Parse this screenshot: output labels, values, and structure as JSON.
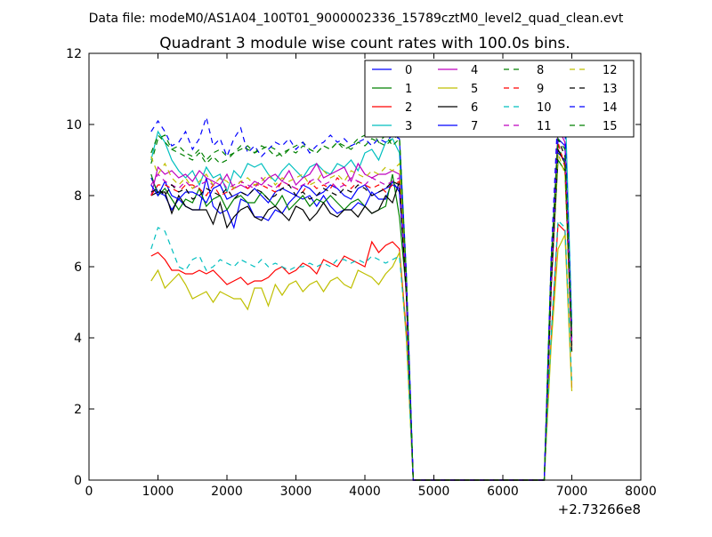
{
  "page": {
    "suptitle": "Data file: modeM0/AS1A04_100T01_9000002336_15789cztM0_level2_quad_clean.evt"
  },
  "chart_data": {
    "type": "line",
    "title": "Quadrant 3 module wise count rates with 100.0s bins.",
    "xlabel": "",
    "ylabel": "",
    "x_offset_label": "+2.73266e8",
    "xlim": [
      0,
      8000
    ],
    "ylim": [
      0,
      12
    ],
    "xticks": [
      0,
      1000,
      2000,
      3000,
      4000,
      5000,
      6000,
      7000,
      8000
    ],
    "yticks": [
      0,
      2,
      4,
      6,
      8,
      10,
      12
    ],
    "legend_position": "top-right",
    "x": [
      900,
      1000,
      1100,
      1200,
      1300,
      1400,
      1500,
      1600,
      1700,
      1800,
      1900,
      2000,
      2100,
      2200,
      2300,
      2400,
      2500,
      2600,
      2700,
      2800,
      2900,
      3000,
      3100,
      3200,
      3300,
      3400,
      3500,
      3600,
      3700,
      3800,
      3900,
      4000,
      4100,
      4200,
      4300,
      4400,
      4500,
      4600,
      4700,
      4800,
      4900,
      5000,
      5100,
      5200,
      5300,
      5400,
      5500,
      5600,
      5700,
      5800,
      5900,
      6000,
      6100,
      6200,
      6300,
      6400,
      6500,
      6600,
      6700,
      6800,
      6900,
      7000
    ],
    "series": [
      {
        "name": "0",
        "color": "#0000ff",
        "dash": "solid",
        "values": [
          8.5,
          8.1,
          8.0,
          7.6,
          7.9,
          7.7,
          7.6,
          7.6,
          8.5,
          7.7,
          7.5,
          7.6,
          7.1,
          7.9,
          7.8,
          7.4,
          7.4,
          7.3,
          7.6,
          7.5,
          7.8,
          8.0,
          7.9,
          8.0,
          7.7,
          8.0,
          7.7,
          7.5,
          7.6,
          7.6,
          7.8,
          7.7,
          8.1,
          7.9,
          7.9,
          8.4,
          8.1,
          5.5,
          0,
          0,
          0,
          0,
          0,
          0,
          0,
          0,
          0,
          0,
          0,
          0,
          0,
          0,
          0,
          0,
          0,
          0,
          0,
          0,
          5.8,
          9.2,
          9.0,
          4.0
        ]
      },
      {
        "name": "1",
        "color": "#008000",
        "dash": "solid",
        "values": [
          8.6,
          8.0,
          8.2,
          7.9,
          7.6,
          7.9,
          7.8,
          8.2,
          7.7,
          7.9,
          8.0,
          7.6,
          7.9,
          8.0,
          7.8,
          7.8,
          8.1,
          7.9,
          7.7,
          8.0,
          7.6,
          7.8,
          8.0,
          7.7,
          7.9,
          7.8,
          8.0,
          7.8,
          7.6,
          7.8,
          7.9,
          7.7,
          7.5,
          7.6,
          7.7,
          8.6,
          7.4,
          5.3,
          0,
          0,
          0,
          0,
          0,
          0,
          0,
          0,
          0,
          0,
          0,
          0,
          0,
          0,
          0,
          0,
          0,
          0,
          0,
          0,
          5.5,
          9.0,
          8.7,
          3.8
        ]
      },
      {
        "name": "2",
        "color": "#ff0000",
        "dash": "solid",
        "values": [
          6.3,
          6.4,
          6.2,
          5.9,
          5.9,
          5.8,
          5.8,
          5.9,
          5.8,
          5.9,
          5.7,
          5.5,
          5.6,
          5.7,
          5.5,
          5.6,
          5.6,
          5.7,
          5.9,
          6.0,
          5.8,
          5.9,
          6.1,
          6.0,
          5.8,
          6.2,
          6.1,
          6.0,
          6.3,
          6.2,
          6.1,
          6.0,
          6.7,
          6.4,
          6.6,
          6.7,
          6.5,
          4.2,
          0,
          0,
          0,
          0,
          0,
          0,
          0,
          0,
          0,
          0,
          0,
          0,
          0,
          0,
          0,
          0,
          0,
          0,
          0,
          0,
          4.0,
          7.2,
          7.0,
          2.6
        ]
      },
      {
        "name": "3",
        "color": "#00bfbf",
        "dash": "solid",
        "values": [
          9.0,
          9.8,
          9.5,
          9.0,
          8.7,
          8.5,
          8.7,
          8.3,
          8.8,
          8.5,
          8.6,
          8.1,
          8.7,
          8.5,
          8.9,
          8.8,
          8.9,
          8.6,
          8.4,
          8.7,
          8.9,
          8.7,
          8.5,
          8.8,
          8.9,
          8.7,
          8.6,
          8.9,
          8.8,
          9.0,
          8.7,
          9.2,
          9.3,
          9.0,
          9.5,
          9.6,
          9.2,
          5.6,
          0,
          0,
          0,
          0,
          0,
          0,
          0,
          0,
          0,
          0,
          0,
          0,
          0,
          0,
          0,
          0,
          0,
          0,
          0,
          0,
          6.0,
          9.8,
          10.7,
          4.4
        ]
      },
      {
        "name": "4",
        "color": "#bf00bf",
        "dash": "solid",
        "values": [
          8.0,
          8.8,
          8.6,
          8.7,
          8.5,
          8.6,
          8.4,
          8.7,
          8.5,
          8.4,
          8.3,
          8.6,
          8.2,
          8.3,
          8.2,
          8.4,
          8.3,
          8.5,
          8.6,
          8.4,
          8.7,
          8.3,
          8.5,
          8.6,
          8.9,
          8.5,
          8.6,
          8.7,
          8.8,
          8.4,
          8.9,
          8.6,
          8.5,
          8.6,
          8.6,
          8.7,
          8.6,
          5.3,
          0,
          0,
          0,
          0,
          0,
          0,
          0,
          0,
          0,
          0,
          0,
          0,
          0,
          0,
          0,
          0,
          0,
          0,
          0,
          0,
          5.8,
          9.9,
          9.5,
          4.0
        ]
      },
      {
        "name": "5",
        "color": "#bfbf00",
        "dash": "solid",
        "values": [
          5.6,
          5.9,
          5.4,
          5.6,
          5.8,
          5.5,
          5.1,
          5.2,
          5.3,
          5.0,
          5.3,
          5.2,
          5.1,
          5.1,
          4.8,
          5.4,
          5.4,
          4.9,
          5.5,
          5.2,
          5.5,
          5.6,
          5.3,
          5.5,
          5.6,
          5.3,
          5.6,
          5.7,
          5.5,
          5.4,
          5.9,
          5.8,
          5.7,
          5.5,
          5.8,
          6.0,
          6.4,
          4.0,
          0,
          0,
          0,
          0,
          0,
          0,
          0,
          0,
          0,
          0,
          0,
          0,
          0,
          0,
          0,
          0,
          0,
          0,
          0,
          0,
          3.8,
          6.5,
          6.9,
          2.5
        ]
      },
      {
        "name": "6",
        "color": "#000000",
        "dash": "solid",
        "values": [
          8.0,
          8.1,
          8.1,
          7.5,
          8.0,
          7.7,
          7.6,
          7.6,
          7.6,
          7.2,
          7.8,
          7.1,
          7.4,
          7.6,
          7.7,
          7.4,
          7.3,
          7.6,
          7.7,
          7.5,
          7.3,
          7.7,
          7.6,
          7.3,
          7.5,
          7.8,
          7.5,
          7.4,
          7.6,
          7.6,
          7.4,
          7.7,
          7.5,
          7.6,
          8.0,
          7.8,
          8.4,
          5.2,
          0,
          0,
          0,
          0,
          0,
          0,
          0,
          0,
          0,
          0,
          0,
          0,
          0,
          0,
          0,
          0,
          0,
          0,
          0,
          0,
          5.4,
          9.3,
          8.9,
          3.6
        ]
      },
      {
        "name": "7",
        "color": "#0000ff",
        "dash": "solid",
        "values": [
          8.3,
          8.0,
          8.4,
          8.0,
          7.9,
          8.1,
          8.1,
          8.0,
          7.8,
          8.2,
          8.3,
          7.9,
          8.0,
          8.1,
          8.0,
          8.2,
          8.0,
          7.8,
          8.1,
          8.2,
          8.1,
          8.0,
          8.3,
          8.2,
          8.0,
          8.1,
          8.3,
          8.2,
          8.0,
          7.9,
          8.2,
          8.3,
          8.0,
          8.1,
          8.2,
          8.3,
          8.2,
          5.4,
          0,
          0,
          0,
          0,
          0,
          0,
          0,
          0,
          0,
          0,
          0,
          0,
          0,
          0,
          0,
          0,
          0,
          0,
          0,
          0,
          5.6,
          9.6,
          9.4,
          3.9
        ]
      },
      {
        "name": "8",
        "color": "#008000",
        "dash": "dashed",
        "values": [
          8.9,
          9.6,
          9.7,
          9.3,
          9.2,
          9.1,
          9.0,
          9.2,
          8.9,
          9.1,
          8.9,
          9.0,
          9.2,
          9.3,
          9.4,
          9.2,
          9.3,
          9.4,
          9.3,
          9.1,
          9.3,
          9.4,
          9.5,
          9.3,
          9.2,
          9.4,
          9.3,
          9.5,
          9.3,
          9.4,
          9.6,
          9.7,
          9.8,
          9.5,
          9.7,
          9.4,
          9.6,
          5.7,
          0,
          0,
          0,
          0,
          0,
          0,
          0,
          0,
          0,
          0,
          0,
          0,
          0,
          0,
          0,
          0,
          0,
          0,
          0,
          0,
          6.1,
          9.4,
          8.9,
          4.2
        ]
      },
      {
        "name": "9",
        "color": "#ff0000",
        "dash": "dashed",
        "values": [
          8.0,
          8.3,
          8.3,
          8.2,
          8.1,
          8.3,
          8.3,
          8.2,
          8.0,
          8.3,
          8.0,
          8.1,
          8.2,
          8.4,
          8.2,
          8.3,
          8.3,
          8.2,
          8.1,
          8.4,
          8.3,
          8.2,
          8.1,
          8.4,
          8.2,
          8.3,
          8.2,
          8.5,
          8.3,
          8.2,
          8.4,
          8.3,
          8.2,
          8.3,
          8.1,
          8.3,
          8.4,
          5.3,
          0,
          0,
          0,
          0,
          0,
          0,
          0,
          0,
          0,
          0,
          0,
          0,
          0,
          0,
          0,
          0,
          0,
          0,
          0,
          0,
          5.4,
          9.5,
          8.8,
          3.7
        ]
      },
      {
        "name": "10",
        "color": "#00bfbf",
        "dash": "dashed",
        "values": [
          6.5,
          7.1,
          7.0,
          6.5,
          6.0,
          5.9,
          6.2,
          6.3,
          5.9,
          6.0,
          6.2,
          6.1,
          6.0,
          6.2,
          6.1,
          6.0,
          6.2,
          6.0,
          6.1,
          6.0,
          5.9,
          6.0,
          6.0,
          6.1,
          6.0,
          6.1,
          6.0,
          6.2,
          6.2,
          6.1,
          6.2,
          6.1,
          6.3,
          6.2,
          6.1,
          6.2,
          6.3,
          4.1,
          0,
          0,
          0,
          0,
          0,
          0,
          0,
          0,
          0,
          0,
          0,
          0,
          0,
          0,
          0,
          0,
          0,
          0,
          0,
          0,
          4.1,
          7.3,
          7.1,
          2.8
        ]
      },
      {
        "name": "11",
        "color": "#bf00bf",
        "dash": "dashed",
        "values": [
          8.3,
          8.6,
          8.4,
          8.3,
          8.2,
          8.4,
          8.2,
          8.3,
          8.4,
          8.3,
          8.5,
          8.2,
          8.3,
          8.4,
          8.3,
          8.2,
          8.5,
          8.3,
          8.2,
          8.4,
          8.3,
          8.2,
          8.3,
          8.4,
          8.5,
          8.3,
          8.4,
          8.2,
          8.3,
          8.5,
          8.4,
          8.3,
          8.5,
          8.4,
          8.3,
          8.4,
          8.5,
          5.4,
          0,
          0,
          0,
          0,
          0,
          0,
          0,
          0,
          0,
          0,
          0,
          0,
          0,
          0,
          0,
          0,
          0,
          0,
          0,
          0,
          5.7,
          10.3,
          9.5,
          3.9
        ]
      },
      {
        "name": "12",
        "color": "#bfbf00",
        "dash": "dashed",
        "values": [
          9.1,
          8.6,
          8.9,
          8.5,
          8.3,
          8.5,
          8.2,
          8.4,
          8.6,
          8.3,
          8.5,
          8.4,
          8.2,
          8.4,
          8.5,
          8.3,
          8.4,
          8.6,
          8.3,
          8.5,
          8.4,
          8.5,
          8.6,
          8.3,
          8.4,
          8.7,
          8.5,
          8.6,
          8.4,
          8.7,
          8.6,
          8.5,
          8.7,
          8.6,
          8.8,
          8.7,
          8.9,
          5.5,
          0,
          0,
          0,
          0,
          0,
          0,
          0,
          0,
          0,
          0,
          0,
          0,
          0,
          0,
          0,
          0,
          0,
          0,
          0,
          0,
          5.6,
          9.2,
          8.6,
          3.6
        ]
      },
      {
        "name": "13",
        "color": "#000000",
        "dash": "dashed",
        "values": [
          8.1,
          8.2,
          8.0,
          8.3,
          8.1,
          8.2,
          7.9,
          8.0,
          8.2,
          8.1,
          8.0,
          8.2,
          7.9,
          8.1,
          8.0,
          8.2,
          8.1,
          7.9,
          8.0,
          8.2,
          8.3,
          8.0,
          8.1,
          7.9,
          8.0,
          8.2,
          8.1,
          8.0,
          8.2,
          8.1,
          8.3,
          8.2,
          8.0,
          8.1,
          8.2,
          8.4,
          8.3,
          5.3,
          0,
          0,
          0,
          0,
          0,
          0,
          0,
          0,
          0,
          0,
          0,
          0,
          0,
          0,
          0,
          0,
          0,
          0,
          0,
          0,
          5.5,
          9.6,
          9.1,
          3.7
        ]
      },
      {
        "name": "14",
        "color": "#0000ff",
        "dash": "dashed",
        "values": [
          9.8,
          10.1,
          9.8,
          9.4,
          9.5,
          9.8,
          9.3,
          9.6,
          10.2,
          9.4,
          9.6,
          9.1,
          9.6,
          9.9,
          9.2,
          9.4,
          9.1,
          9.3,
          9.5,
          9.4,
          9.6,
          9.3,
          9.5,
          9.2,
          9.4,
          9.5,
          9.7,
          9.5,
          9.6,
          9.4,
          9.5,
          9.6,
          9.4,
          9.6,
          9.5,
          9.7,
          9.6,
          5.9,
          0,
          0,
          0,
          0,
          0,
          0,
          0,
          0,
          0,
          0,
          0,
          0,
          0,
          0,
          0,
          0,
          0,
          0,
          0,
          0,
          6.3,
          10.4,
          9.9,
          4.3
        ]
      },
      {
        "name": "15",
        "color": "#008000",
        "dash": "dashed",
        "values": [
          9.2,
          9.7,
          9.5,
          9.3,
          9.4,
          9.2,
          9.1,
          9.3,
          9.0,
          9.2,
          9.3,
          9.1,
          9.2,
          9.4,
          9.3,
          9.2,
          9.4,
          9.3,
          9.1,
          9.2,
          9.3,
          9.2,
          9.4,
          9.3,
          9.2,
          9.4,
          9.3,
          9.5,
          9.4,
          9.3,
          9.5,
          9.4,
          9.6,
          9.5,
          9.4,
          9.6,
          9.7,
          5.8,
          0,
          0,
          0,
          0,
          0,
          0,
          0,
          0,
          0,
          0,
          0,
          0,
          0,
          0,
          0,
          0,
          0,
          0,
          0,
          0,
          6.2,
          9.6,
          9.3,
          4.1
        ]
      }
    ]
  }
}
